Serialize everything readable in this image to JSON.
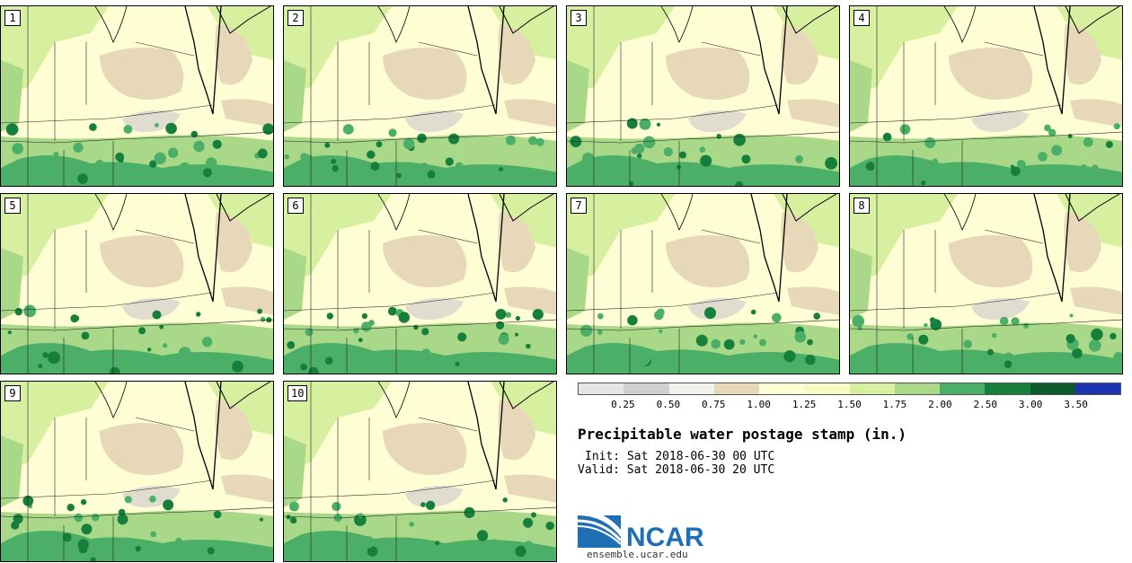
{
  "title": "Precipitable water postage stamp (in.)",
  "init_label": "Init: Sat 2018-06-30 00 UTC",
  "valid_label": "Valid: Sat 2018-06-30 20 UTC",
  "colorbar": {
    "colors": [
      "#e6e6e6",
      "#d0d0d0",
      "#f2f2ec",
      "#e6d8b8",
      "#fffdd3",
      "#f4fbc2",
      "#d6f0a0",
      "#a8d888",
      "#4caf68",
      "#157f3b",
      "#0a5a2a",
      "#1c33b2"
    ],
    "ticks": [
      "0.25",
      "0.50",
      "0.75",
      "1.00",
      "1.25",
      "1.50",
      "1.75",
      "2.00",
      "2.50",
      "3.00",
      "3.50"
    ]
  },
  "members": [
    "1",
    "2",
    "3",
    "4",
    "5",
    "6",
    "7",
    "8",
    "9",
    "10"
  ],
  "logo": {
    "text": "NCAR",
    "url": "ensemble.ucar.edu",
    "blue": "#1f6fb5"
  }
}
